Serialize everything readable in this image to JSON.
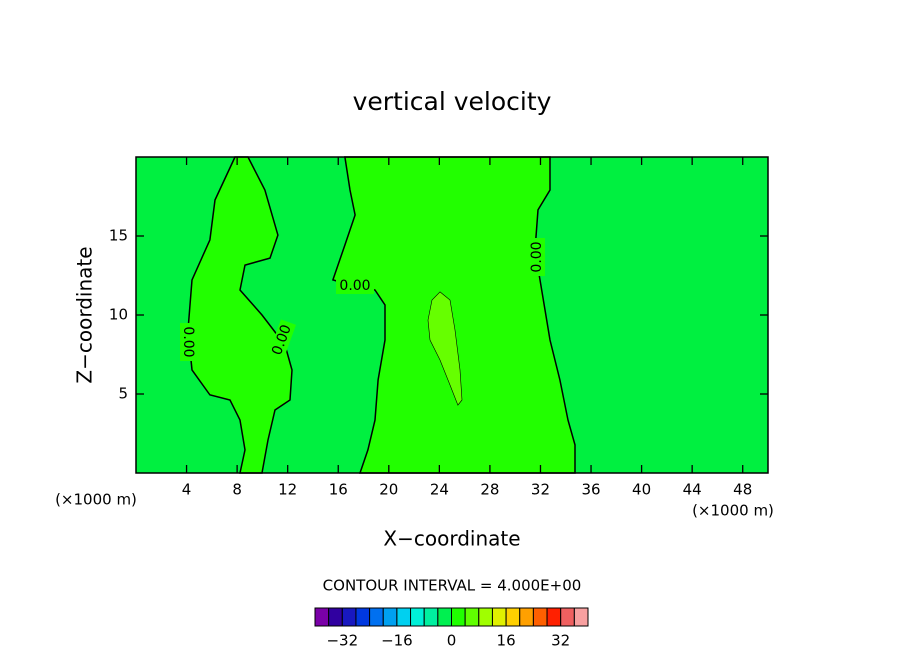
{
  "chart_data": {
    "type": "contour",
    "title": "vertical velocity",
    "x_label": "X−coordinate",
    "y_label": "Z−coordinate",
    "x_unit_label": "(×1000 m)",
    "y_unit_label": "(×1000 m)",
    "xlim": [
      0,
      50
    ],
    "ylim": [
      0,
      20
    ],
    "xticks": [
      4,
      8,
      12,
      16,
      20,
      24,
      28,
      32,
      36,
      40,
      44,
      48
    ],
    "yticks": [
      5,
      10,
      15
    ],
    "field_color": "#00f040",
    "regions": [
      {
        "level": 0,
        "label": "0.00",
        "color": "#22ff00",
        "x": [
          7.83,
          6.25,
          5.85,
          4.43,
          4.11,
          4.43,
          5.85,
          7.44,
          8.23,
          8.62,
          8.23,
          9.97,
          10.44,
          11.0,
          12.18,
          12.34,
          11.79,
          9.97,
          8.23,
          8.62,
          10.6,
          11.23,
          10.2,
          8.86
        ],
        "y": [
          20,
          17.28,
          14.75,
          12.22,
          9.05,
          6.52,
          4.94,
          4.62,
          3.35,
          1.46,
          0,
          0,
          2.09,
          3.99,
          4.62,
          6.52,
          8.1,
          10.0,
          11.58,
          13.16,
          13.6,
          15.06,
          17.91,
          20
        ]
      },
      {
        "level": 0,
        "label": "0.00",
        "color": "#22ff00",
        "x": [
          16.53,
          16.93,
          17.33,
          16.53,
          15.58,
          16.93,
          18.91,
          19.7,
          19.7,
          19.15,
          18.91,
          18.35,
          17.72,
          34.73,
          34.73,
          34.18,
          33.54,
          32.75,
          32.36,
          31.96,
          31.57,
          31.8,
          32.75,
          32.75
        ],
        "y": [
          20,
          17.91,
          16.33,
          14.43,
          12.22,
          11.9,
          11.58,
          10.63,
          8.42,
          5.89,
          3.35,
          1.46,
          0,
          0,
          1.78,
          3.35,
          5.89,
          8.42,
          10.32,
          12.22,
          14.11,
          16.65,
          17.91,
          20
        ]
      },
      {
        "level": 4,
        "color": "#66ff00",
        "x": [
          24.05,
          24.84,
          25.24,
          25.63,
          25.79,
          25.47,
          24.84,
          24.05,
          23.26,
          23.1,
          23.42
        ],
        "y": [
          11.46,
          10.95,
          9.05,
          6.52,
          4.62,
          4.3,
          5.57,
          7.15,
          8.42,
          9.68,
          10.95
        ]
      }
    ],
    "contour_interval_label": "CONTOUR INTERVAL = 4.000E+00",
    "colorbar": {
      "clim": [
        -40,
        40
      ],
      "colors": [
        "#7a00a8",
        "#3000a0",
        "#1818c0",
        "#0038e0",
        "#0070f0",
        "#00a0f0",
        "#00d0f0",
        "#00f0d8",
        "#00f0a0",
        "#00f050",
        "#20ff00",
        "#60ff00",
        "#a0ff00",
        "#e0f000",
        "#ffd000",
        "#ffa000",
        "#ff6000",
        "#ff2000",
        "#f06060",
        "#f8a0a0"
      ],
      "ticks": [
        {
          "value": -32,
          "label": "−32"
        },
        {
          "value": -16,
          "label": "−16"
        },
        0,
        16,
        32
      ]
    }
  }
}
